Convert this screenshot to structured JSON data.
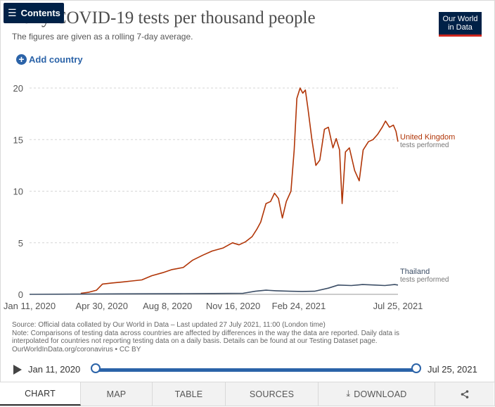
{
  "header": {
    "contents_label": "Contents",
    "title": "Daily COVID-19 tests per thousand people",
    "subtitle": "The figures are given as a rolling 7-day average.",
    "logo_line1": "Our World",
    "logo_line2": "in Data",
    "add_country_label": "Add country"
  },
  "colors": {
    "brand_navy": "#002147",
    "brand_red": "#ce261e",
    "link_blue": "#2b63a8",
    "uk": "#b13507",
    "thailand": "#3c4e66"
  },
  "chart_data": {
    "type": "line",
    "title": "Daily COVID-19 tests per thousand people",
    "subtitle": "The figures are given as a rolling 7-day average.",
    "xlabel": "",
    "ylabel": "",
    "x_range": [
      "2020-01-11",
      "2021-07-25"
    ],
    "ylim": [
      0,
      20
    ],
    "y_ticks": [
      "0",
      "5",
      "10",
      "15",
      "20"
    ],
    "x_ticks": [
      {
        "date": "2020-01-11",
        "label": "Jan 11, 2020"
      },
      {
        "date": "2020-04-30",
        "label": "Apr 30, 2020"
      },
      {
        "date": "2020-08-08",
        "label": "Aug 8, 2020"
      },
      {
        "date": "2020-11-16",
        "label": "Nov 16, 2020"
      },
      {
        "date": "2021-02-24",
        "label": "Feb 24, 2021"
      },
      {
        "date": "2021-07-25",
        "label": "Jul 25, 2021"
      }
    ],
    "grid": true,
    "legend_position": "right-inline",
    "series": [
      {
        "name": "United Kingdom",
        "sublabel": "tests performed",
        "color": "#b13507",
        "points": [
          [
            "2020-03-29",
            0.1
          ],
          [
            "2020-04-10",
            0.2
          ],
          [
            "2020-04-22",
            0.4
          ],
          [
            "2020-05-01",
            1.0
          ],
          [
            "2020-05-15",
            1.1
          ],
          [
            "2020-06-01",
            1.2
          ],
          [
            "2020-06-15",
            1.3
          ],
          [
            "2020-06-30",
            1.4
          ],
          [
            "2020-07-15",
            1.8
          ],
          [
            "2020-08-01",
            2.1
          ],
          [
            "2020-08-15",
            2.4
          ],
          [
            "2020-09-01",
            2.6
          ],
          [
            "2020-09-15",
            3.3
          ],
          [
            "2020-10-01",
            3.8
          ],
          [
            "2020-10-15",
            4.2
          ],
          [
            "2020-11-01",
            4.5
          ],
          [
            "2020-11-15",
            5.0
          ],
          [
            "2020-11-25",
            4.8
          ],
          [
            "2020-12-05",
            5.1
          ],
          [
            "2020-12-15",
            5.6
          ],
          [
            "2020-12-22",
            6.3
          ],
          [
            "2020-12-28",
            7.0
          ],
          [
            "2021-01-05",
            8.8
          ],
          [
            "2021-01-12",
            9.0
          ],
          [
            "2021-01-18",
            9.8
          ],
          [
            "2021-01-24",
            9.3
          ],
          [
            "2021-01-30",
            7.4
          ],
          [
            "2021-02-05",
            9.0
          ],
          [
            "2021-02-12",
            10.0
          ],
          [
            "2021-02-17",
            14.0
          ],
          [
            "2021-02-21",
            19.0
          ],
          [
            "2021-02-26",
            20.0
          ],
          [
            "2021-03-02",
            19.5
          ],
          [
            "2021-03-06",
            19.8
          ],
          [
            "2021-03-10",
            18.0
          ],
          [
            "2021-03-16",
            15.0
          ],
          [
            "2021-03-22",
            12.5
          ],
          [
            "2021-03-28",
            13.0
          ],
          [
            "2021-04-04",
            16.0
          ],
          [
            "2021-04-10",
            16.2
          ],
          [
            "2021-04-17",
            14.2
          ],
          [
            "2021-04-22",
            15.1
          ],
          [
            "2021-04-27",
            14.0
          ],
          [
            "2021-05-01",
            8.8
          ],
          [
            "2021-05-06",
            13.8
          ],
          [
            "2021-05-12",
            14.2
          ],
          [
            "2021-05-20",
            12.0
          ],
          [
            "2021-05-27",
            11.0
          ],
          [
            "2021-06-02",
            14.0
          ],
          [
            "2021-06-10",
            14.8
          ],
          [
            "2021-06-17",
            15.0
          ],
          [
            "2021-06-24",
            15.5
          ],
          [
            "2021-07-01",
            16.2
          ],
          [
            "2021-07-06",
            16.8
          ],
          [
            "2021-07-12",
            16.2
          ],
          [
            "2021-07-18",
            16.4
          ],
          [
            "2021-07-22",
            15.8
          ],
          [
            "2021-07-25",
            14.8
          ]
        ]
      },
      {
        "name": "Thailand",
        "sublabel": "tests performed",
        "color": "#3c4e66",
        "points": [
          [
            "2020-01-11",
            0.0
          ],
          [
            "2020-03-15",
            0.02
          ],
          [
            "2020-06-01",
            0.05
          ],
          [
            "2020-09-01",
            0.07
          ],
          [
            "2020-12-01",
            0.1
          ],
          [
            "2020-12-20",
            0.3
          ],
          [
            "2021-01-05",
            0.4
          ],
          [
            "2021-01-20",
            0.35
          ],
          [
            "2021-02-10",
            0.3
          ],
          [
            "2021-03-01",
            0.28
          ],
          [
            "2021-03-20",
            0.3
          ],
          [
            "2021-04-10",
            0.6
          ],
          [
            "2021-04-25",
            0.9
          ],
          [
            "2021-05-15",
            0.85
          ],
          [
            "2021-06-01",
            0.95
          ],
          [
            "2021-06-20",
            0.9
          ],
          [
            "2021-07-05",
            0.85
          ],
          [
            "2021-07-20",
            0.95
          ],
          [
            "2021-07-25",
            0.9
          ]
        ]
      }
    ]
  },
  "footnote": {
    "line1": "Source: Official data collated by Our World in Data – Last updated 27 July 2021, 11:00 (London time)",
    "line2": "Note: Comparisons of testing data across countries are affected by differences in the way the data are reported. Daily data is",
    "line3": "interpolated for countries not reporting testing data on a daily basis. Details can be found at our Testing Dataset page.",
    "line4": "OurWorldInData.org/coronavirus • CC BY"
  },
  "timeline": {
    "start_label": "Jan 11, 2020",
    "end_label": "Jul 25, 2021"
  },
  "tabs": [
    {
      "label": "CHART",
      "active": true
    },
    {
      "label": "MAP"
    },
    {
      "label": "TABLE"
    },
    {
      "label": "SOURCES"
    },
    {
      "label": "DOWNLOAD",
      "icon": "download-icon"
    },
    {
      "label": "",
      "icon": "share-icon"
    }
  ]
}
